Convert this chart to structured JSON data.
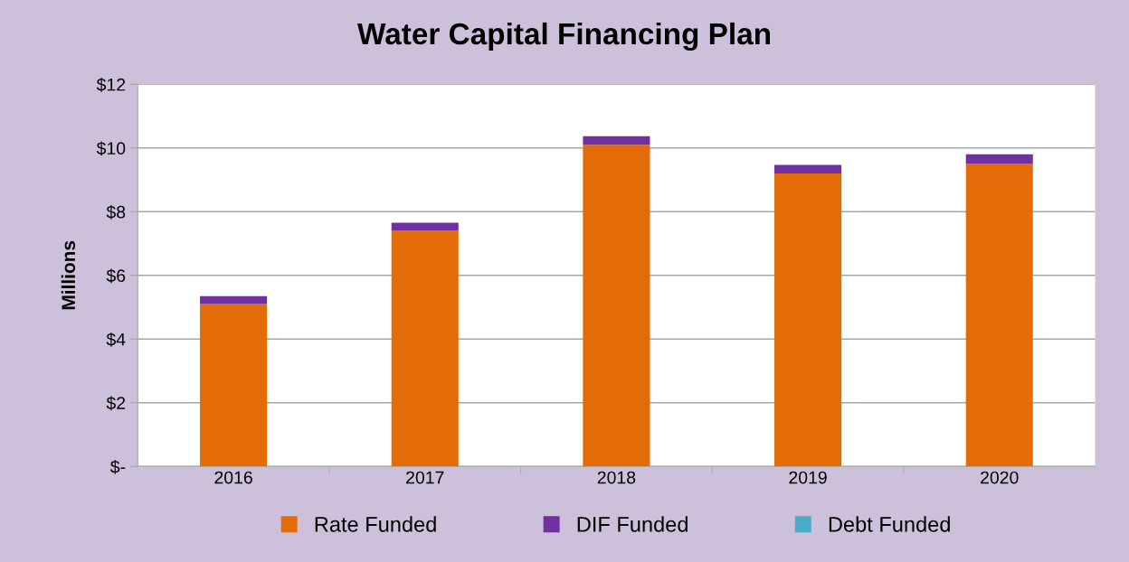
{
  "chart_data": {
    "type": "bar",
    "title": "Water Capital Financing Plan",
    "ylabel": "Millions",
    "categories": [
      "2016",
      "2017",
      "2018",
      "2019",
      "2020"
    ],
    "stacked": true,
    "series": [
      {
        "name": "Rate Funded",
        "color": "#e36c09",
        "values": [
          5.1,
          7.4,
          10.1,
          9.2,
          9.5
        ]
      },
      {
        "name": "DIF Funded",
        "color": "#7030a0",
        "values": [
          0.25,
          0.25,
          0.27,
          0.27,
          0.3
        ]
      },
      {
        "name": "Debt Funded",
        "color": "#4bacc6",
        "values": [
          0,
          0,
          0,
          0,
          0
        ]
      }
    ],
    "ylim": [
      0,
      12
    ],
    "yticks": [
      {
        "value": 0,
        "label": "$-"
      },
      {
        "value": 2,
        "label": "$2"
      },
      {
        "value": 4,
        "label": "$4"
      },
      {
        "value": 6,
        "label": "$6"
      },
      {
        "value": 8,
        "label": "$8"
      },
      {
        "value": 10,
        "label": "$10"
      },
      {
        "value": 12,
        "label": "$12"
      }
    ],
    "grid": "y",
    "legend": "bottom"
  }
}
